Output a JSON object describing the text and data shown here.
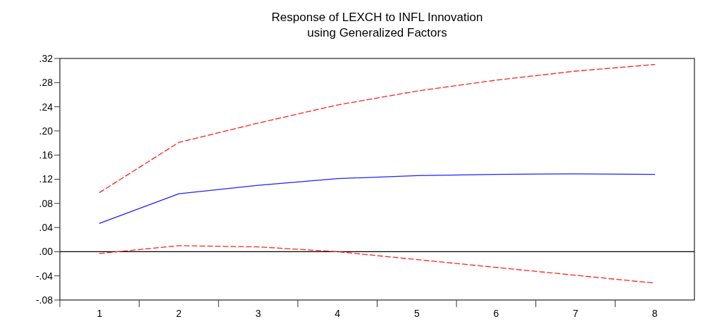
{
  "chart_data": {
    "type": "line",
    "title": "Response of LEXCH to INFL Innovation\nusing Generalized Factors",
    "categories": [
      "1",
      "2",
      "3",
      "4",
      "5",
      "6",
      "7",
      "8"
    ],
    "series": [
      {
        "color": "#2020ff",
        "line_style": "solid",
        "values": [
          0.047,
          0.096,
          0.11,
          0.121,
          0.126,
          0.128,
          0.129,
          0.128
        ]
      },
      {
        "color": "#ff2020",
        "line_style": "dashed",
        "values": [
          0.098,
          0.181,
          0.213,
          0.243,
          0.266,
          0.284,
          0.299,
          0.31
        ]
      },
      {
        "color": "#ff2020",
        "line_style": "dashed",
        "values": [
          -0.003,
          0.01,
          0.008,
          0.0,
          -0.013,
          -0.026,
          -0.039,
          -0.052
        ]
      }
    ],
    "ylim": [
      -0.08,
      0.32
    ],
    "yticks": [
      {
        "value": -0.08,
        "label": "-.08"
      },
      {
        "value": -0.04,
        "label": "-.04"
      },
      {
        "value": 0,
        "label": ".00"
      },
      {
        "value": 0.04,
        "label": ".04"
      },
      {
        "value": 0.08,
        "label": ".08"
      },
      {
        "value": 0.12,
        "label": ".12"
      },
      {
        "value": 0.16,
        "label": ".16"
      },
      {
        "value": 0.2,
        "label": ".20"
      },
      {
        "value": 0.24,
        "label": ".24"
      },
      {
        "value": 0.28,
        "label": ".28"
      },
      {
        "value": 0.32,
        "label": ".32"
      }
    ],
    "ref_lines": [
      {
        "axis": "y",
        "value": 0,
        "color": "#000000"
      }
    ],
    "grid": false,
    "marker": "none"
  }
}
